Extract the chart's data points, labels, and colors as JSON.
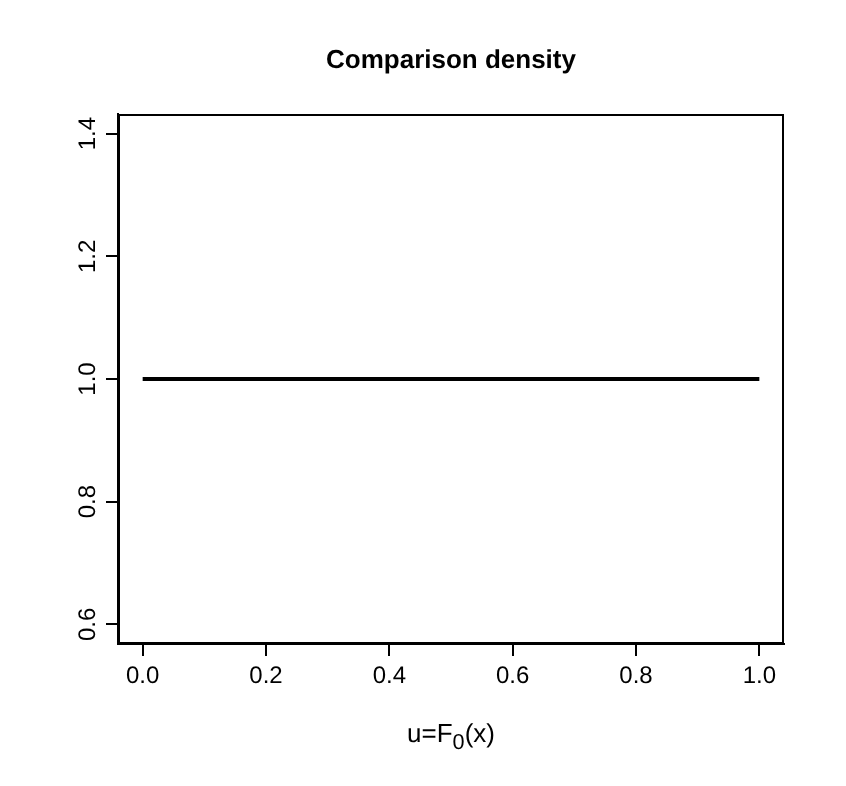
{
  "chart_data": {
    "type": "line",
    "title": "Comparison density",
    "xlabel": "u=F$_{0}$(x)",
    "x": [
      0,
      1
    ],
    "series": [
      {
        "color": "#000000",
        "values": [
          1,
          1
        ]
      }
    ],
    "xlim": [
      -0.04,
      1.04
    ],
    "xticks": [
      {
        "value": 0,
        "label": "0.0"
      },
      {
        "value": 0.2,
        "label": "0.2"
      },
      {
        "value": 0.4,
        "label": "0.4"
      },
      {
        "value": 0.6,
        "label": "0.6"
      },
      {
        "value": 0.8,
        "label": "0.8"
      },
      {
        "value": 1,
        "label": "1.0"
      }
    ],
    "ylim": [
      0.568,
      1.432
    ],
    "yticks": [
      {
        "value": 0.6,
        "label": "0.6"
      },
      {
        "value": 0.8,
        "label": "0.8"
      },
      {
        "value": 1,
        "label": "1.0"
      },
      {
        "value": 1.2,
        "label": "1.2"
      },
      {
        "value": 1.4,
        "label": "1.4"
      }
    ],
    "grid": false,
    "legend": false,
    "marker": "none",
    "line_style": "solid"
  }
}
